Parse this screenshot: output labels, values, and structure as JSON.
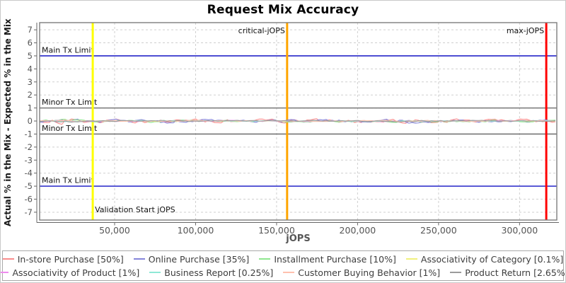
{
  "chart_data": {
    "type": "line",
    "title": "Request Mix Accuracy",
    "xlabel": "jOPS",
    "ylabel": "Actual % in the Mix - Expected % in the Mix",
    "xlim": [
      3700,
      323000
    ],
    "ylim": [
      -7.6,
      7.55
    ],
    "grid": true,
    "legend_position": "bottom",
    "x_ticks": [
      50000,
      100000,
      150000,
      200000,
      250000,
      300000
    ],
    "x_tick_labels": [
      "50,000",
      "100,000",
      "150,000",
      "200,000",
      "250,000",
      "300,000"
    ],
    "y_ticks": [
      -7,
      -6,
      -5,
      -4,
      -3,
      -2,
      -1,
      0,
      1,
      2,
      3,
      4,
      5,
      6,
      7
    ],
    "h_markers": [
      {
        "label": "Main Tx Limit",
        "value": 5,
        "color": "#2626c9"
      },
      {
        "label": "Minor Tx Limit",
        "value": 1,
        "color": "#767676"
      },
      {
        "label": "Minor Tx Limit",
        "value": -1,
        "color": "#767676"
      },
      {
        "label": "Main Tx Limit",
        "value": -5,
        "color": "#2626c9"
      }
    ],
    "v_markers": [
      {
        "label": "Validation Start jOPS",
        "value": 36500,
        "color": "#ffff00",
        "label_pos": "bottom-right"
      },
      {
        "label": "critical-jOPS",
        "value": 156500,
        "color": "#ffa500",
        "label_pos": "top-left"
      },
      {
        "label": "max-jOPS",
        "value": 316500,
        "color": "#ff0000",
        "label_pos": "top-left"
      }
    ],
    "series": [
      {
        "name": "In-store Purchase [50%]",
        "color": "#f98c8c",
        "baseline": 0,
        "amplitude": 0.22,
        "seed": 11
      },
      {
        "name": "Online Purchase [35%]",
        "color": "#8585da",
        "baseline": 0,
        "amplitude": 0.18,
        "seed": 22
      },
      {
        "name": "Installment Purchase [10%]",
        "color": "#8fe68f",
        "baseline": 0,
        "amplitude": 0.12,
        "seed": 33
      },
      {
        "name": "Associativity of Category [0.1%]",
        "color": "#f0f07d",
        "baseline": 0,
        "amplitude": 0.04,
        "seed": 44
      },
      {
        "name": "Associativity of Product [1%]",
        "color": "#ee8bee",
        "baseline": 0,
        "amplitude": 0.06,
        "seed": 55
      },
      {
        "name": "Business Report [0.25%]",
        "color": "#8fe8d6",
        "baseline": 0,
        "amplitude": 0.05,
        "seed": 66
      },
      {
        "name": "Customer Buying Behavior [1%]",
        "color": "#ffc0ae",
        "baseline": 0,
        "amplitude": 0.07,
        "seed": 77
      },
      {
        "name": "Product Return [2.65%]",
        "color": "#9b9b9b",
        "baseline": 0,
        "amplitude": 0.08,
        "seed": 88
      }
    ],
    "note": "All request-mix deviation series hover at approximately 0% (±0.25%) across the full jOPS range",
    "legend_rows": [
      [
        0,
        1,
        2,
        3
      ],
      [
        4,
        5,
        6,
        7
      ]
    ]
  }
}
